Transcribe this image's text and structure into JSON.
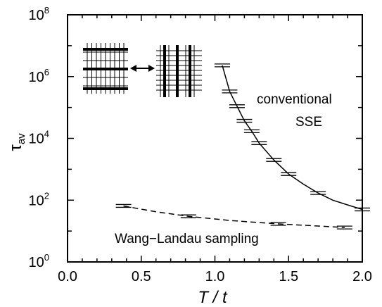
{
  "chart_data": {
    "type": "line",
    "xlabel": "T / t",
    "ylabel": "τ",
    "ylabel_sub": "av",
    "xlim": [
      0.0,
      2.0
    ],
    "ylim": [
      1,
      100000000
    ],
    "yscale": "log",
    "x_ticks": [
      "0.0",
      "0.5",
      "1.0",
      "1.5",
      "2.0"
    ],
    "y_ticks": [
      {
        "base": "10",
        "exp": "0"
      },
      {
        "base": "10",
        "exp": "2"
      },
      {
        "base": "10",
        "exp": "4"
      },
      {
        "base": "10",
        "exp": "6"
      },
      {
        "base": "10",
        "exp": "8"
      }
    ],
    "grid": false,
    "series": [
      {
        "name": "conventional SSE",
        "style": "solid",
        "x": [
          1.05,
          1.1,
          1.15,
          1.2,
          1.25,
          1.3,
          1.4,
          1.5,
          1.7,
          2.0
        ],
        "y": [
          2300000,
          330000,
          110000,
          37000,
          17000,
          7000,
          2000,
          700,
          170,
          50
        ],
        "curve": {
          "x": [
            1.05,
            1.1,
            1.15,
            1.2,
            1.25,
            1.3,
            1.4,
            1.5,
            1.6,
            1.7,
            1.8,
            1.9,
            2.0
          ],
          "y": [
            2300000,
            330000,
            110000,
            37000,
            17000,
            7000,
            2000,
            700,
            330,
            170,
            100,
            70,
            50
          ]
        }
      },
      {
        "name": "Wang−Landau sampling",
        "style": "dashed",
        "x": [
          0.38,
          0.82,
          1.43,
          1.88
        ],
        "y": [
          65,
          30,
          17,
          13
        ],
        "curve": {
          "x": [
            0.38,
            0.6,
            0.82,
            1.1,
            1.43,
            1.65,
            1.88
          ],
          "y": [
            65,
            42,
            30,
            22,
            17,
            15,
            13
          ]
        }
      }
    ],
    "annotations": [
      {
        "lines": [
          "conventional",
          "SSE"
        ]
      },
      {
        "lines": [
          "Wang−Landau sampling"
        ]
      }
    ]
  }
}
